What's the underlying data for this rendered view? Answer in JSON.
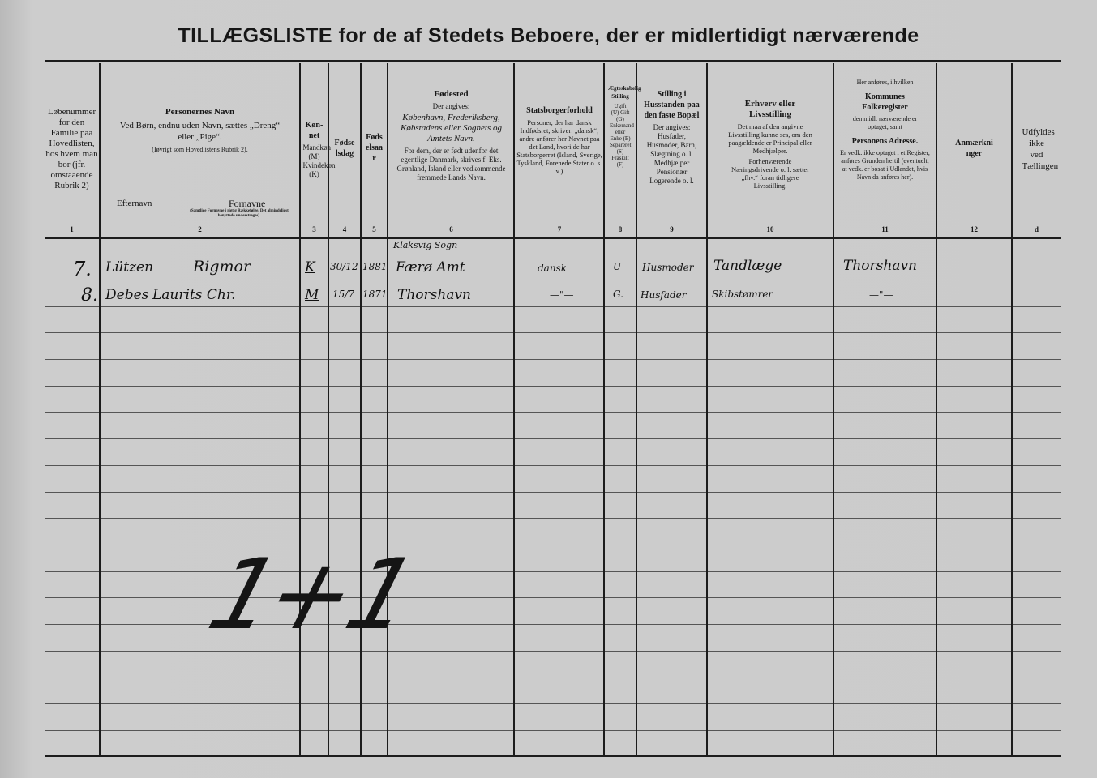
{
  "title": "TILLÆGSLISTE for de af Stedets Beboere, der er midlertidigt nærværende",
  "columns": [
    {
      "num": "1",
      "heading": "",
      "text": "Løbenummer for den Familie paa Hovedlisten, hos hvem man bor (jfr. omstaaende Rubrik 2)"
    },
    {
      "num": "2",
      "heading": "Personernes Navn",
      "text": "Ved Børn, endnu uden Navn, sættes „Dreng“ eller „Pige“.",
      "note": "(Iøvrigt som Hovedlistens Rubrik 2).",
      "sub_left": "Efternavn",
      "sub_right": "Fornavne",
      "sub_right_note": "(Samtlige Fornavne i rigtig Rækkefølge. Det almindeligst benyttede understreges)."
    },
    {
      "num": "3",
      "heading": "Køn-net",
      "text": "Mandkøn (M) Kvindekøn (K)"
    },
    {
      "num": "4",
      "heading": "Fødselsdag",
      "text": ""
    },
    {
      "num": "5",
      "heading": "Fødselsaar",
      "text": ""
    },
    {
      "num": "6",
      "heading": "Fødested",
      "text": "Der angives:",
      "italic": "København, Frederiksberg, Købstadens eller Sognets og Amtets Navn.",
      "note": "For dem, der er født udenfor det egentlige Danmark, skrives f. Eks. Grønland, Island eller vedkommende fremmede Lands Navn."
    },
    {
      "num": "7",
      "heading": "Statsborgerforhold",
      "text": "Personer, der har dansk Indfødsret, skriver: „dansk“; andre anfører her Navnet paa det Land, hvori de har Statsborgerret (Island, Sverige, Tyskland, Forenede Stater o. s. v.)"
    },
    {
      "num": "8",
      "heading": "Ægteskabelig Stilling",
      "text": "Ugift (U) Gift (G) Enkemand eller Enke (E) Separeret (S) Fraskilt (F)"
    },
    {
      "num": "9",
      "heading": "Stilling i Husstanden paa den faste Bopæl",
      "text": "Der angives: Husfader, Husmoder, Barn, Slægtning o. l. Medhjælper Pensionær Logerende o. l."
    },
    {
      "num": "10",
      "heading": "Erhverv eller Livsstilling",
      "text": "Det maa af den angivne Livsstilling kunne ses, om den paagældende er Principal eller Medhjælper.",
      "note": "Forhenværende Næringsdrivende o. l. sætter „fhv.“ foran tidligere Livsstilling."
    },
    {
      "num": "11",
      "pre": "Her anføres, i hvilken",
      "heading": "Kommunes Folkeregister",
      "text": "den midl. nærværende er optaget, samt",
      "heading2": "Personens Adresse.",
      "note": "Er vedk. ikke optaget i et Register, anføres Grunden hertil (eventuelt, at vedk. er bosat i Udlandet, hvis Navn da anføres her)."
    },
    {
      "num": "12",
      "heading": "Anmærkninger",
      "text": ""
    },
    {
      "num": "d",
      "heading": "",
      "text": "Udfyldes ikke ved Tællingen"
    }
  ],
  "entries": [
    {
      "nr": "7.",
      "surname": "Lützen",
      "given": "Rigmor",
      "sex": "K",
      "birthday": "30/12",
      "birthyear": "1881",
      "birthplace_line1": "Klaksvig Sogn",
      "birthplace": "Færø Amt",
      "citizenship": "dansk",
      "marital": "U",
      "household": "Husmoder",
      "occupation": "Tandlæge",
      "address": "Thorshavn"
    },
    {
      "nr": "8.",
      "surname": "Debes",
      "given": "Laurits Chr.",
      "sex": "M",
      "birthday": "15/7",
      "birthyear": "1871",
      "birthplace_line1": "",
      "birthplace": "Thorshavn",
      "citizenship": "—\"—",
      "marital": "G.",
      "household": "Husfader",
      "occupation": "Skibstømrer",
      "address": "—\"—"
    }
  ],
  "tally_mark": "1+1"
}
